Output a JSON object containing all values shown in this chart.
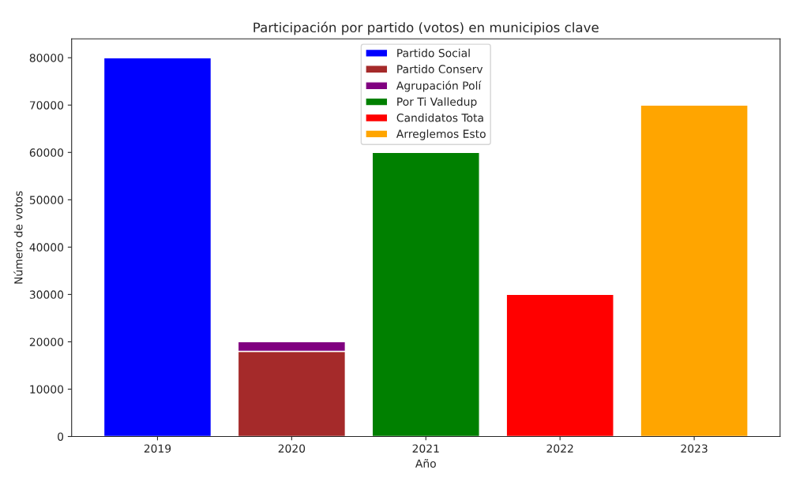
{
  "chart_data": {
    "type": "bar",
    "title": "Participación por partido (votos) en municipios clave",
    "xlabel": "Año",
    "ylabel": "Número de votos",
    "categories": [
      "2019",
      "2020",
      "2021",
      "2022",
      "2023"
    ],
    "stacked": true,
    "series": [
      {
        "name": "Partido Social",
        "color": "#0000ff",
        "values": [
          80000,
          null,
          null,
          null,
          null
        ]
      },
      {
        "name": "Partido Conserv",
        "color": "#a52a2a",
        "values": [
          null,
          18000,
          null,
          null,
          null
        ]
      },
      {
        "name": "Agrupación Polí",
        "color": "#800080",
        "values": [
          null,
          2000,
          null,
          null,
          null
        ]
      },
      {
        "name": "Por Ti Valledup",
        "color": "#008000",
        "values": [
          null,
          null,
          60000,
          null,
          null
        ]
      },
      {
        "name": "Candidatos Tota",
        "color": "#ff0000",
        "values": [
          null,
          null,
          null,
          30000,
          null
        ]
      },
      {
        "name": "Arreglemos Esto",
        "color": "#ffa500",
        "values": [
          null,
          null,
          null,
          null,
          70000
        ]
      }
    ],
    "ylim": [
      0,
      84000
    ],
    "yticks": [
      0,
      10000,
      20000,
      30000,
      40000,
      50000,
      60000,
      70000,
      80000
    ],
    "legend": "top",
    "grid": false
  }
}
